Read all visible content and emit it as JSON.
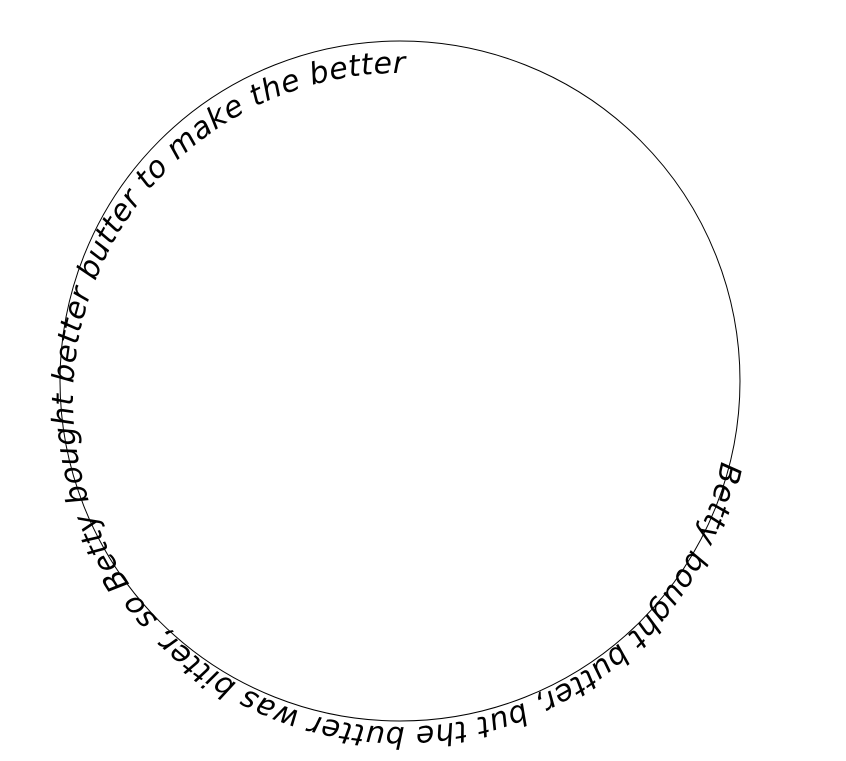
{
  "circle_text": "Betty bought butter, but the butter was bitter, so Betty bought better butter to make the better.",
  "colors": {
    "background": "#ffffff",
    "ring_stroke": "#000000",
    "text": "#000000"
  }
}
